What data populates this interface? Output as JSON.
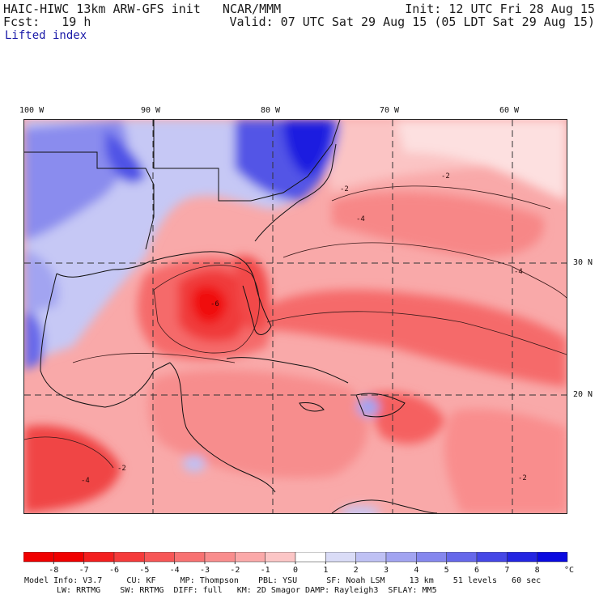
{
  "header": {
    "left_line1": "HAIC-HIWC 13km ARW-GFS init   NCAR/MMM",
    "left_line2": "Fcst:   19 h",
    "left_line3": "Lifted index",
    "right_line1": "Init: 12 UTC Fri 28 Aug 15",
    "right_line2": "Valid: 07 UTC Sat 29 Aug 15 (05 LDT Sat 29 Aug 15)"
  },
  "map": {
    "lon_labels": [
      "100 W",
      "90 W",
      "80 W",
      "70 W",
      "60 W"
    ],
    "lat_labels": [
      "30 N",
      "20 N"
    ],
    "contour_labels": [
      "-2",
      "-4",
      "-4",
      "-2",
      "-6",
      "-2",
      "-4",
      "-2"
    ],
    "colors": {
      "strong_blue": "#1a1ae0",
      "mid_blue": "#6d6df0",
      "light_blue": "#c6c8f5",
      "white": "#ffffff",
      "light_red": "#fbc4c4",
      "mid_red": "#f78d8d",
      "strong_red": "#ef3a3a",
      "deep_red": "#f00000"
    }
  },
  "colorbar": {
    "ticks": [
      "-8",
      "-7",
      "-6",
      "-5",
      "-4",
      "-3",
      "-2",
      "-1",
      "0",
      "1",
      "2",
      "3",
      "4",
      "5",
      "6",
      "7",
      "8"
    ],
    "unit": "°C",
    "colors": [
      "#f00000",
      "#f31e1e",
      "#f53a3a",
      "#f75656",
      "#f87272",
      "#f98d8d",
      "#fba9a9",
      "#fcc6c6",
      "#ffffff",
      "#dadcf7",
      "#bfc1f4",
      "#a2a4f1",
      "#8587ee",
      "#6668ea",
      "#4547e6",
      "#2325e2",
      "#0a0ae0"
    ]
  },
  "footer": {
    "line1": "Model Info: V3.7     CU: KF     MP: Thompson    PBL: YSU      SF: Noah LSM     13 km    51 levels   60 sec",
    "line2": "LW: RRTMG    SW: RRTMG  DIFF: full   KM: 2D Smagor DAMP: Rayleigh3  SFLAY: MM5"
  }
}
